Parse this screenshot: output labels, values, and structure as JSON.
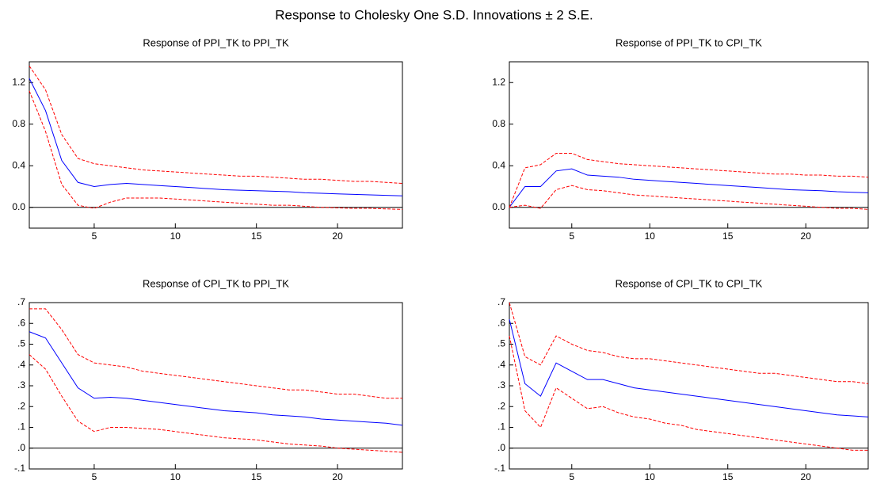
{
  "title": "Response to Cholesky One S.D. Innovations ± 2 S.E.",
  "chart_data": [
    {
      "type": "line",
      "title": "Response of PPI_TK to PPI_TK",
      "x": [
        1,
        2,
        3,
        4,
        5,
        6,
        7,
        8,
        9,
        10,
        11,
        12,
        13,
        14,
        15,
        16,
        17,
        18,
        19,
        20,
        21,
        22,
        23,
        24
      ],
      "xlim": [
        1,
        24
      ],
      "xticks": [
        5,
        10,
        15,
        20
      ],
      "ylim": [
        -0.2,
        1.4
      ],
      "yticks": [
        {
          "value": 0,
          "label": "0.0"
        },
        0.4,
        0.8,
        1.2
      ],
      "hline": 0,
      "series": [
        {
          "color": "#0000ff",
          "dash": false,
          "values": [
            1.24,
            0.93,
            0.45,
            0.24,
            0.2,
            0.22,
            0.23,
            0.22,
            0.21,
            0.2,
            0.19,
            0.18,
            0.17,
            0.165,
            0.16,
            0.155,
            0.15,
            0.14,
            0.135,
            0.13,
            0.125,
            0.12,
            0.115,
            0.11
          ]
        },
        {
          "color": "#ff0000",
          "dash": true,
          "values": [
            1.36,
            1.13,
            0.7,
            0.47,
            0.42,
            0.4,
            0.38,
            0.36,
            0.35,
            0.34,
            0.33,
            0.32,
            0.31,
            0.3,
            0.3,
            0.29,
            0.28,
            0.27,
            0.27,
            0.26,
            0.25,
            0.25,
            0.24,
            0.23
          ]
        },
        {
          "color": "#ff0000",
          "dash": true,
          "values": [
            1.12,
            0.73,
            0.22,
            0.02,
            -0.01,
            0.05,
            0.09,
            0.09,
            0.09,
            0.08,
            0.07,
            0.06,
            0.05,
            0.04,
            0.03,
            0.02,
            0.02,
            0.01,
            0.0,
            -0.005,
            -0.01,
            -0.01,
            -0.015,
            -0.02
          ]
        }
      ]
    },
    {
      "type": "line",
      "title": "Response of PPI_TK to CPI_TK",
      "x": [
        1,
        2,
        3,
        4,
        5,
        6,
        7,
        8,
        9,
        10,
        11,
        12,
        13,
        14,
        15,
        16,
        17,
        18,
        19,
        20,
        21,
        22,
        23,
        24
      ],
      "xlim": [
        1,
        24
      ],
      "xticks": [
        5,
        10,
        15,
        20
      ],
      "ylim": [
        -0.2,
        1.4
      ],
      "yticks": [
        {
          "value": 0,
          "label": "0.0"
        },
        0.4,
        0.8,
        1.2
      ],
      "hline": 0,
      "series": [
        {
          "color": "#0000ff",
          "dash": false,
          "values": [
            0.0,
            0.2,
            0.2,
            0.35,
            0.37,
            0.31,
            0.3,
            0.29,
            0.27,
            0.26,
            0.25,
            0.24,
            0.23,
            0.22,
            0.21,
            0.2,
            0.19,
            0.18,
            0.17,
            0.165,
            0.16,
            0.15,
            0.145,
            0.14
          ]
        },
        {
          "color": "#ff0000",
          "dash": true,
          "values": [
            0.0,
            0.38,
            0.41,
            0.52,
            0.52,
            0.46,
            0.44,
            0.42,
            0.41,
            0.4,
            0.39,
            0.38,
            0.37,
            0.36,
            0.35,
            0.34,
            0.33,
            0.32,
            0.32,
            0.31,
            0.31,
            0.3,
            0.3,
            0.29
          ]
        },
        {
          "color": "#ff0000",
          "dash": true,
          "values": [
            0.0,
            0.02,
            -0.01,
            0.17,
            0.21,
            0.17,
            0.16,
            0.14,
            0.12,
            0.11,
            0.1,
            0.09,
            0.08,
            0.07,
            0.06,
            0.05,
            0.04,
            0.03,
            0.02,
            0.01,
            0.0,
            -0.01,
            -0.01,
            -0.02
          ]
        }
      ]
    },
    {
      "type": "line",
      "title": "Response of CPI_TK to PPI_TK",
      "x": [
        1,
        2,
        3,
        4,
        5,
        6,
        7,
        8,
        9,
        10,
        11,
        12,
        13,
        14,
        15,
        16,
        17,
        18,
        19,
        20,
        21,
        22,
        23,
        24
      ],
      "xlim": [
        1,
        24
      ],
      "xticks": [
        5,
        10,
        15,
        20
      ],
      "ylim": [
        -0.1,
        0.7
      ],
      "yticks": [
        {
          "value": -0.1,
          "label": "-.1"
        },
        {
          "value": 0,
          "label": ".0"
        },
        {
          "value": 0.1,
          "label": ".1"
        },
        {
          "value": 0.2,
          "label": ".2"
        },
        {
          "value": 0.3,
          "label": ".3"
        },
        {
          "value": 0.4,
          "label": ".4"
        },
        {
          "value": 0.5,
          "label": ".5"
        },
        {
          "value": 0.6,
          "label": ".6"
        },
        {
          "value": 0.7,
          "label": ".7"
        }
      ],
      "hline": 0,
      "series": [
        {
          "color": "#0000ff",
          "dash": false,
          "values": [
            0.56,
            0.53,
            0.41,
            0.29,
            0.24,
            0.245,
            0.24,
            0.23,
            0.22,
            0.21,
            0.2,
            0.19,
            0.18,
            0.175,
            0.17,
            0.16,
            0.155,
            0.15,
            0.14,
            0.135,
            0.13,
            0.125,
            0.12,
            0.11
          ]
        },
        {
          "color": "#ff0000",
          "dash": true,
          "values": [
            0.67,
            0.67,
            0.57,
            0.45,
            0.41,
            0.4,
            0.39,
            0.37,
            0.36,
            0.35,
            0.34,
            0.33,
            0.32,
            0.31,
            0.3,
            0.29,
            0.28,
            0.28,
            0.27,
            0.26,
            0.26,
            0.25,
            0.24,
            0.24
          ]
        },
        {
          "color": "#ff0000",
          "dash": true,
          "values": [
            0.45,
            0.38,
            0.25,
            0.13,
            0.08,
            0.1,
            0.1,
            0.095,
            0.09,
            0.08,
            0.07,
            0.06,
            0.05,
            0.045,
            0.04,
            0.03,
            0.02,
            0.015,
            0.01,
            0.0,
            -0.005,
            -0.01,
            -0.015,
            -0.02
          ]
        }
      ]
    },
    {
      "type": "line",
      "title": "Response of CPI_TK to CPI_TK",
      "x": [
        1,
        2,
        3,
        4,
        5,
        6,
        7,
        8,
        9,
        10,
        11,
        12,
        13,
        14,
        15,
        16,
        17,
        18,
        19,
        20,
        21,
        22,
        23,
        24
      ],
      "xlim": [
        1,
        24
      ],
      "xticks": [
        5,
        10,
        15,
        20
      ],
      "ylim": [
        -0.1,
        0.7
      ],
      "yticks": [
        {
          "value": -0.1,
          "label": "-.1"
        },
        {
          "value": 0,
          "label": ".0"
        },
        {
          "value": 0.1,
          "label": ".1"
        },
        {
          "value": 0.2,
          "label": ".2"
        },
        {
          "value": 0.3,
          "label": ".3"
        },
        {
          "value": 0.4,
          "label": ".4"
        },
        {
          "value": 0.5,
          "label": ".5"
        },
        {
          "value": 0.6,
          "label": ".6"
        },
        {
          "value": 0.7,
          "label": ".7"
        }
      ],
      "hline": 0,
      "series": [
        {
          "color": "#0000ff",
          "dash": false,
          "values": [
            0.62,
            0.31,
            0.25,
            0.41,
            0.37,
            0.33,
            0.33,
            0.31,
            0.29,
            0.28,
            0.27,
            0.26,
            0.25,
            0.24,
            0.23,
            0.22,
            0.21,
            0.2,
            0.19,
            0.18,
            0.17,
            0.16,
            0.155,
            0.15
          ]
        },
        {
          "color": "#ff0000",
          "dash": true,
          "values": [
            0.7,
            0.44,
            0.4,
            0.54,
            0.5,
            0.47,
            0.46,
            0.44,
            0.43,
            0.43,
            0.42,
            0.41,
            0.4,
            0.39,
            0.38,
            0.37,
            0.36,
            0.36,
            0.35,
            0.34,
            0.33,
            0.32,
            0.32,
            0.31
          ]
        },
        {
          "color": "#ff0000",
          "dash": true,
          "values": [
            0.54,
            0.18,
            0.1,
            0.29,
            0.24,
            0.19,
            0.2,
            0.17,
            0.15,
            0.14,
            0.12,
            0.11,
            0.09,
            0.08,
            0.07,
            0.06,
            0.05,
            0.04,
            0.03,
            0.02,
            0.01,
            0.0,
            -0.01,
            -0.01
          ]
        }
      ]
    }
  ]
}
